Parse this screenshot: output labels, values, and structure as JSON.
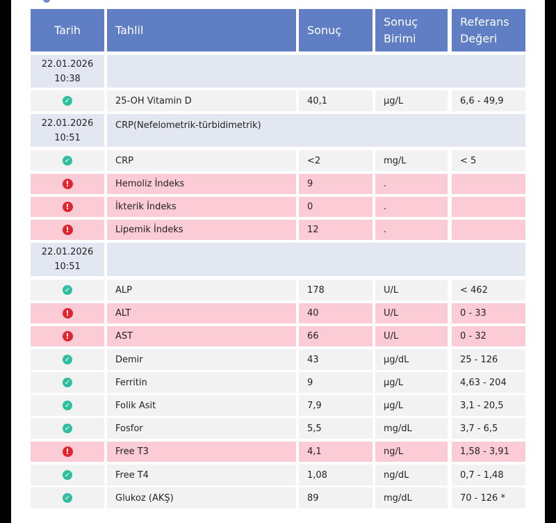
{
  "header": {
    "tarih": "Tarih",
    "tahlil": "Tahlil",
    "sonuc": "Sonuç",
    "birim_l1": "Sonuç",
    "birim_l2": "Birimi",
    "ref_l1": "Referans",
    "ref_l2": "Değeri"
  },
  "groups": [
    {
      "date": "22.01.2026",
      "time": "10:38",
      "title": ""
    },
    {
      "date": "22.01.2026",
      "time": "10:51",
      "title": "CRP(Nefelometrik-türbidimetrik)"
    },
    {
      "date": "22.01.2026",
      "time": "10:51",
      "title": ""
    }
  ],
  "rows": [
    {
      "status": "ok",
      "name": "25-OH Vitamin D",
      "value": "40,1",
      "unit": "µg/L",
      "ref": "6,6 - 49,9"
    },
    {
      "status": "ok",
      "name": "CRP",
      "value": "<2",
      "unit": "mg/L",
      "ref": "< 5"
    },
    {
      "status": "bad",
      "name": "Hemoliz İndeks",
      "value": "9",
      "unit": ".",
      "ref": ""
    },
    {
      "status": "bad",
      "name": "İkterik İndeks",
      "value": "0",
      "unit": ".",
      "ref": ""
    },
    {
      "status": "bad",
      "name": "Lipemik İndeks",
      "value": "12",
      "unit": ".",
      "ref": ""
    },
    {
      "status": "ok",
      "name": "ALP",
      "value": "178",
      "unit": "U/L",
      "ref": "< 462"
    },
    {
      "status": "bad",
      "name": "ALT",
      "value": "40",
      "unit": "U/L",
      "ref": "0 - 33"
    },
    {
      "status": "bad",
      "name": "AST",
      "value": "66",
      "unit": "U/L",
      "ref": "0 - 32"
    },
    {
      "status": "ok",
      "name": "Demir",
      "value": "43",
      "unit": "µg/dL",
      "ref": "25 - 126"
    },
    {
      "status": "ok",
      "name": "Ferritin",
      "value": "9",
      "unit": "µg/L",
      "ref": "4,63 - 204"
    },
    {
      "status": "ok",
      "name": "Folik Asit",
      "value": "7,9",
      "unit": "µg/L",
      "ref": "3,1 - 20,5"
    },
    {
      "status": "ok",
      "name": "Fosfor",
      "value": "5,5",
      "unit": "mg/dL",
      "ref": "3,7 - 6,5"
    },
    {
      "status": "bad",
      "name": "Free T3",
      "value": "4,1",
      "unit": "ng/L",
      "ref": "1,58 - 3,91"
    },
    {
      "status": "ok",
      "name": "Free T4",
      "value": "1,08",
      "unit": "ng/dL",
      "ref": "0,7 - 1,48"
    },
    {
      "status": "ok",
      "name": "Glukoz (AKŞ)",
      "value": "89",
      "unit": "mg/dL",
      "ref": "70 - 126 *"
    }
  ],
  "colors": {
    "header": "#5f7ec4",
    "ok_icon": "#2fbf9f",
    "bad_icon": "#e0252f",
    "bad_row": "#fbcbd6",
    "ok_row": "#f2f2f2",
    "group_row": "#e3e7f1"
  }
}
